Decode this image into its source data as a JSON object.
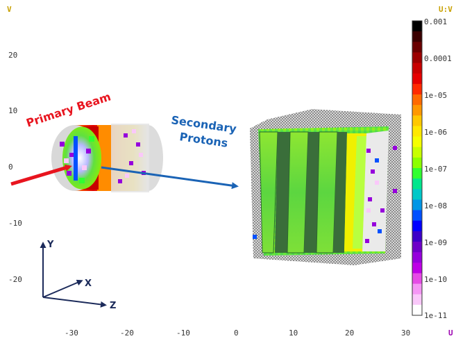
{
  "axes": {
    "v_letter": "V",
    "u_letter": "U",
    "uv_label": "U:V",
    "y_ticks": [
      "20",
      "10",
      "0",
      "-10",
      "-20"
    ],
    "x_ticks": [
      "-30",
      "-20",
      "-10",
      "0",
      "10",
      "20",
      "30"
    ]
  },
  "colorbar": {
    "labels": [
      "0.001",
      "0.0001",
      "1e-05",
      "1e-06",
      "1e-07",
      "1e-08",
      "1e-09",
      "1e-10",
      "1e-11"
    ],
    "colors": [
      "#000000",
      "#3a0000",
      "#6a0000",
      "#9c0000",
      "#c80000",
      "#e60000",
      "#ff2a00",
      "#ff6a00",
      "#ff9800",
      "#ffc800",
      "#ffe800",
      "#f5ff00",
      "#c8ff00",
      "#8cff00",
      "#30ff30",
      "#00e68c",
      "#00c8c8",
      "#0096e6",
      "#0050ff",
      "#0000ff",
      "#3c00c8",
      "#6e00c8",
      "#9600dc",
      "#be00e6",
      "#e64be6",
      "#f596f5",
      "#fac8fa",
      "#ffffff"
    ]
  },
  "annotations": {
    "primary_beam": "Primary Beam",
    "secondary_line1": "Secondary",
    "secondary_line2": "Protons"
  },
  "triad": {
    "y": "Y",
    "x": "X",
    "z": "Z"
  },
  "colors": {
    "arrow_red": "#e8141e",
    "arrow_blue": "#1a63b5",
    "triad": "#1b2a5a"
  }
}
